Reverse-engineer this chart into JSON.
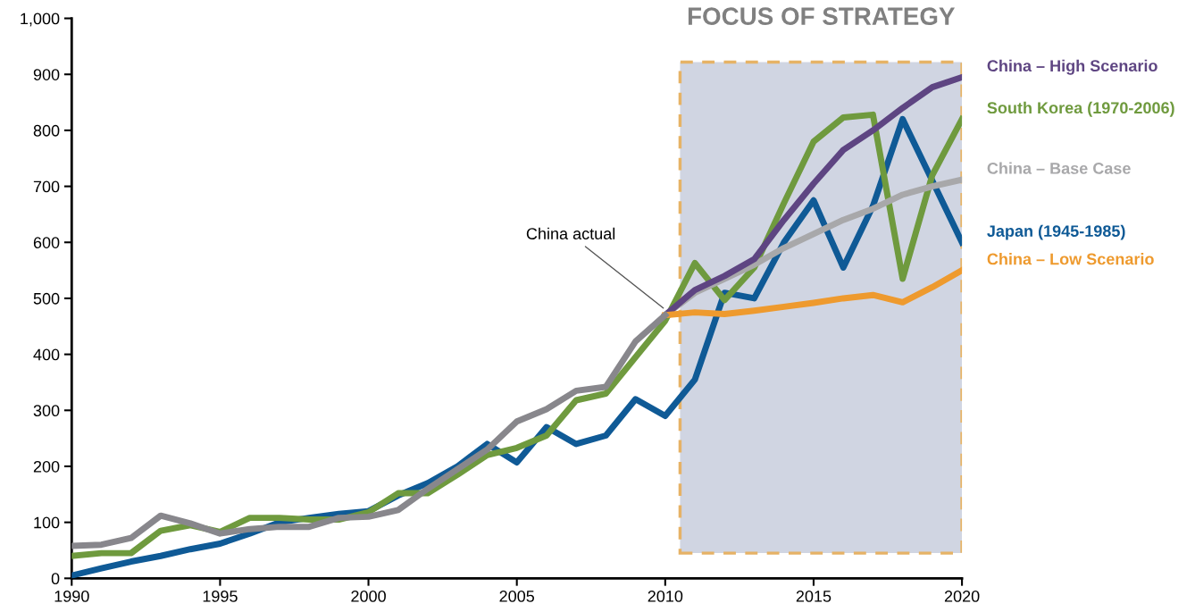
{
  "chart_data": {
    "type": "line",
    "x": [
      1990,
      1991,
      1992,
      1993,
      1994,
      1995,
      1996,
      1997,
      1998,
      1999,
      2000,
      2001,
      2002,
      2003,
      2004,
      2005,
      2006,
      2007,
      2008,
      2009,
      2010,
      2011,
      2012,
      2013,
      2014,
      2015,
      2016,
      2017,
      2018,
      2019,
      2020
    ],
    "series": [
      {
        "name": "Japan (1945-1985)",
        "color": "#0f5a96",
        "values": [
          5,
          18,
          30,
          40,
          52,
          62,
          80,
          100,
          108,
          115,
          120,
          148,
          170,
          200,
          240,
          207,
          270,
          240,
          255,
          320,
          290,
          355,
          510,
          500,
          600,
          675,
          555,
          665,
          820,
          710,
          600
        ]
      },
      {
        "name": "South Korea (1970-2006)",
        "color": "#6f9a3e",
        "values": [
          40,
          45,
          45,
          85,
          95,
          83,
          108,
          108,
          105,
          105,
          118,
          152,
          152,
          185,
          220,
          233,
          255,
          318,
          330,
          395,
          460,
          563,
          497,
          555,
          670,
          780,
          823,
          828,
          535,
          720,
          820
        ]
      },
      {
        "name": "China – Base Case",
        "color": "#a8a8aa",
        "x": [
          2010,
          2011,
          2012,
          2013,
          2014,
          2015,
          2016,
          2017,
          2018,
          2019,
          2020
        ],
        "values": [
          470,
          510,
          535,
          560,
          590,
          615,
          640,
          660,
          685,
          700,
          712
        ]
      },
      {
        "name": "China – High Scenario",
        "color": "#5e4582",
        "x": [
          2010,
          2011,
          2012,
          2013,
          2014,
          2015,
          2016,
          2017,
          2018,
          2019,
          2020
        ],
        "values": [
          470,
          515,
          540,
          570,
          640,
          705,
          765,
          800,
          840,
          877,
          895
        ]
      },
      {
        "name": "China – Low Scenario",
        "color": "#ee9a2e",
        "x": [
          2010,
          2011,
          2012,
          2013,
          2014,
          2015,
          2016,
          2017,
          2018,
          2019,
          2020
        ],
        "values": [
          470,
          475,
          472,
          478,
          485,
          492,
          500,
          506,
          493,
          520,
          550
        ]
      },
      {
        "color": "#88878c",
        "x": [
          1990,
          1991,
          1992,
          1993,
          1994,
          1995,
          1996,
          1997,
          1998,
          1999,
          2000,
          2001,
          2002,
          2003,
          2004,
          2005,
          2006,
          2007,
          2008,
          2009,
          2010
        ],
        "values": [
          58,
          60,
          72,
          112,
          98,
          80,
          88,
          92,
          92,
          108,
          110,
          122,
          160,
          195,
          230,
          280,
          302,
          335,
          342,
          423,
          470
        ]
      }
    ],
    "annotations": [
      {
        "text": "China actual",
        "x": 2010,
        "y": 480
      }
    ],
    "bands": [
      {
        "axis": "x",
        "from": 2010.5,
        "to": 2020,
        "label": "FOCUS OF STRATEGY",
        "color": "#c5cbdb"
      }
    ],
    "xlim": [
      1990,
      2020
    ],
    "xticks": [
      1990,
      1995,
      2000,
      2005,
      2010,
      2015,
      2020
    ],
    "ylim": [
      0,
      1000
    ],
    "yticks": [
      0,
      100,
      200,
      300,
      400,
      500,
      600,
      700,
      800,
      900,
      {
        "value": 1000,
        "label": "1,000"
      }
    ],
    "grid": false,
    "legend": false,
    "marker": "none",
    "line_style": "solid"
  }
}
